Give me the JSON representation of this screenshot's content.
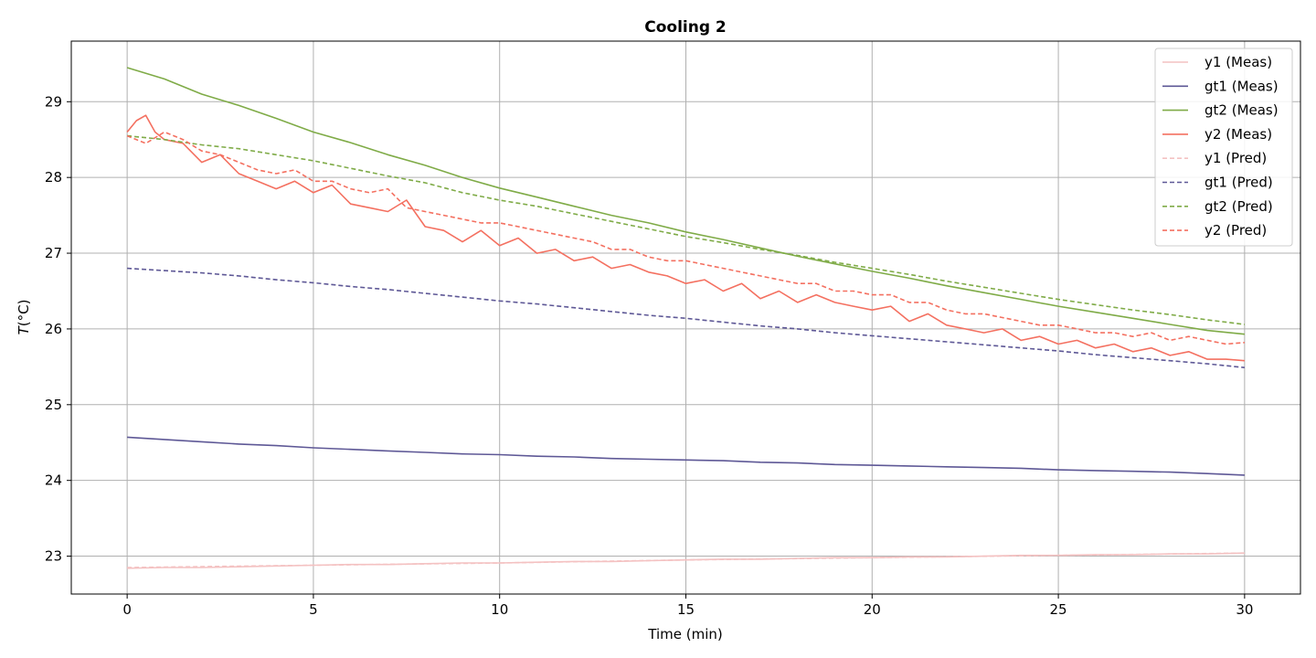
{
  "chart_data": {
    "type": "line",
    "title": "Cooling 2",
    "xlabel": "Time (min)",
    "ylabel_main": "T",
    "ylabel_unit": "(°C)",
    "xlim": [
      -1.5,
      31.5
    ],
    "ylim": [
      22.5,
      29.8
    ],
    "xticks": [
      0,
      5,
      10,
      15,
      20,
      25,
      30
    ],
    "yticks": [
      23,
      24,
      25,
      26,
      27,
      28,
      29
    ],
    "grid": true,
    "legend_position": "top-right",
    "series": [
      {
        "name": "y1 (Meas)",
        "color": "#f4c2c2",
        "dash": "solid",
        "x": [
          0,
          1,
          2,
          3,
          4,
          5,
          6,
          7,
          8,
          9,
          10,
          11,
          12,
          13,
          14,
          15,
          16,
          17,
          18,
          19,
          20,
          21,
          22,
          23,
          24,
          25,
          26,
          27,
          28,
          29,
          30
        ],
        "y": [
          22.84,
          22.85,
          22.85,
          22.86,
          22.87,
          22.88,
          22.89,
          22.89,
          22.9,
          22.91,
          22.91,
          22.92,
          22.93,
          22.93,
          22.94,
          22.95,
          22.96,
          22.96,
          22.97,
          22.98,
          22.98,
          22.99,
          22.99,
          23.0,
          23.01,
          23.01,
          23.02,
          23.02,
          23.03,
          23.03,
          23.04
        ]
      },
      {
        "name": "gt1 (Meas)",
        "color": "#5e5896",
        "dash": "solid",
        "x": [
          0,
          1,
          2,
          3,
          4,
          5,
          6,
          7,
          8,
          9,
          10,
          11,
          12,
          13,
          14,
          15,
          16,
          17,
          18,
          19,
          20,
          21,
          22,
          23,
          24,
          25,
          26,
          27,
          28,
          29,
          30
        ],
        "y": [
          24.57,
          24.54,
          24.51,
          24.48,
          24.46,
          24.43,
          24.41,
          24.39,
          24.37,
          24.35,
          24.34,
          24.32,
          24.31,
          24.29,
          24.28,
          24.27,
          24.26,
          24.24,
          24.23,
          24.21,
          24.2,
          24.19,
          24.18,
          24.17,
          24.16,
          24.14,
          24.13,
          24.12,
          24.11,
          24.09,
          24.07
        ]
      },
      {
        "name": "gt2 (Meas)",
        "color": "#7fab47",
        "dash": "solid",
        "x": [
          0,
          1,
          2,
          3,
          4,
          5,
          6,
          7,
          8,
          9,
          10,
          11,
          12,
          13,
          14,
          15,
          16,
          17,
          18,
          19,
          20,
          21,
          22,
          23,
          24,
          25,
          26,
          27,
          28,
          29,
          30
        ],
        "y": [
          29.45,
          29.3,
          29.1,
          28.95,
          28.78,
          28.6,
          28.46,
          28.3,
          28.16,
          28.0,
          27.86,
          27.74,
          27.62,
          27.5,
          27.4,
          27.28,
          27.18,
          27.07,
          26.96,
          26.86,
          26.76,
          26.67,
          26.57,
          26.48,
          26.39,
          26.3,
          26.22,
          26.14,
          26.06,
          25.98,
          25.93
        ]
      },
      {
        "name": "y2 (Meas)",
        "color": "#f47060",
        "dash": "solid",
        "x": [
          0,
          0.25,
          0.5,
          0.75,
          1,
          1.5,
          2,
          2.5,
          3,
          3.5,
          4,
          4.5,
          5,
          5.5,
          6,
          6.5,
          7,
          7.5,
          8,
          8.5,
          9,
          9.5,
          10,
          10.5,
          11,
          11.5,
          12,
          12.5,
          13,
          13.5,
          14,
          14.5,
          15,
          15.5,
          16,
          16.5,
          17,
          17.5,
          18,
          18.5,
          19,
          19.5,
          20,
          20.5,
          21,
          21.5,
          22,
          22.5,
          23,
          23.5,
          24,
          24.5,
          25,
          25.5,
          26,
          26.5,
          27,
          27.5,
          28,
          28.5,
          29,
          29.5,
          30
        ],
        "y": [
          28.6,
          28.75,
          28.82,
          28.6,
          28.5,
          28.45,
          28.2,
          28.3,
          28.05,
          27.95,
          27.85,
          27.95,
          27.8,
          27.9,
          27.65,
          27.6,
          27.55,
          27.7,
          27.35,
          27.3,
          27.15,
          27.3,
          27.1,
          27.2,
          27.0,
          27.05,
          26.9,
          26.95,
          26.8,
          26.85,
          26.75,
          26.7,
          26.6,
          26.65,
          26.5,
          26.6,
          26.4,
          26.5,
          26.35,
          26.45,
          26.35,
          26.3,
          26.25,
          26.3,
          26.1,
          26.2,
          26.05,
          26.0,
          25.95,
          26.0,
          25.85,
          25.9,
          25.8,
          25.85,
          25.75,
          25.8,
          25.7,
          25.75,
          25.65,
          25.7,
          25.6,
          25.6,
          25.58
        ]
      },
      {
        "name": "y1 (Pred)",
        "color": "#f4c2c2",
        "dash": "dashed",
        "x": [
          0,
          5,
          10,
          15,
          20,
          25,
          30
        ],
        "y": [
          22.85,
          22.88,
          22.91,
          22.95,
          22.98,
          23.01,
          23.04
        ]
      },
      {
        "name": "gt1 (Pred)",
        "color": "#5e5896",
        "dash": "dashed",
        "x": [
          0,
          1,
          2,
          3,
          4,
          5,
          6,
          7,
          8,
          9,
          10,
          11,
          12,
          13,
          14,
          15,
          16,
          17,
          18,
          19,
          20,
          21,
          22,
          23,
          24,
          25,
          26,
          27,
          28,
          29,
          30
        ],
        "y": [
          26.8,
          26.77,
          26.74,
          26.7,
          26.65,
          26.61,
          26.56,
          26.52,
          26.47,
          26.42,
          26.37,
          26.33,
          26.28,
          26.23,
          26.18,
          26.14,
          26.09,
          26.04,
          26.0,
          25.95,
          25.91,
          25.87,
          25.83,
          25.79,
          25.75,
          25.71,
          25.66,
          25.62,
          25.58,
          25.54,
          25.49
        ]
      },
      {
        "name": "gt2 (Pred)",
        "color": "#7fab47",
        "dash": "dashed",
        "x": [
          0,
          1,
          2,
          3,
          4,
          5,
          6,
          7,
          8,
          9,
          10,
          11,
          12,
          13,
          14,
          15,
          16,
          17,
          18,
          19,
          20,
          21,
          22,
          23,
          24,
          25,
          26,
          27,
          28,
          29,
          30
        ],
        "y": [
          28.55,
          28.5,
          28.43,
          28.38,
          28.3,
          28.22,
          28.12,
          28.02,
          27.93,
          27.8,
          27.7,
          27.62,
          27.52,
          27.42,
          27.32,
          27.22,
          27.14,
          27.05,
          26.97,
          26.88,
          26.8,
          26.72,
          26.63,
          26.55,
          26.47,
          26.39,
          26.32,
          26.25,
          26.19,
          26.12,
          26.06
        ]
      },
      {
        "name": "y2 (Pred)",
        "color": "#f47060",
        "dash": "dashed",
        "x": [
          0,
          0.5,
          1,
          1.5,
          2,
          2.5,
          3,
          3.5,
          4,
          4.5,
          5,
          5.5,
          6,
          6.5,
          7,
          7.5,
          8,
          8.5,
          9,
          9.5,
          10,
          10.5,
          11,
          11.5,
          12,
          12.5,
          13,
          13.5,
          14,
          14.5,
          15,
          15.5,
          16,
          16.5,
          17,
          17.5,
          18,
          18.5,
          19,
          19.5,
          20,
          20.5,
          21,
          21.5,
          22,
          22.5,
          23,
          23.5,
          24,
          24.5,
          25,
          25.5,
          26,
          26.5,
          27,
          27.5,
          28,
          28.5,
          29,
          29.5,
          30
        ],
        "y": [
          28.55,
          28.45,
          28.6,
          28.5,
          28.35,
          28.3,
          28.2,
          28.1,
          28.05,
          28.1,
          27.95,
          27.95,
          27.85,
          27.8,
          27.85,
          27.6,
          27.55,
          27.5,
          27.45,
          27.4,
          27.4,
          27.35,
          27.3,
          27.25,
          27.2,
          27.15,
          27.05,
          27.05,
          26.95,
          26.9,
          26.9,
          26.85,
          26.8,
          26.75,
          26.7,
          26.65,
          26.6,
          26.6,
          26.5,
          26.5,
          26.45,
          26.45,
          26.35,
          26.35,
          26.25,
          26.2,
          26.2,
          26.15,
          26.1,
          26.05,
          26.05,
          26.0,
          25.95,
          25.95,
          25.9,
          25.95,
          25.85,
          25.9,
          25.85,
          25.8,
          25.82
        ]
      }
    ]
  }
}
